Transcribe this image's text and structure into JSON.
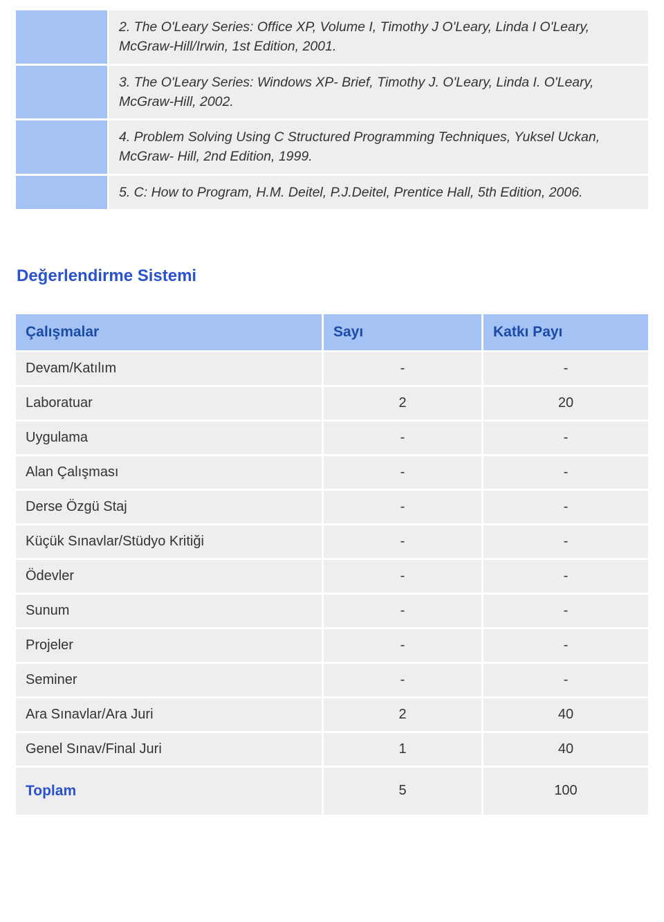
{
  "colors": {
    "header_bg": "#a4c2f4",
    "header_text": "#1b4aa8",
    "cell_bg": "#eeeeee",
    "cell_text": "#333333",
    "section_title": "#2952cc",
    "page_bg": "#ffffff"
  },
  "references": {
    "items": [
      "2. The O'Leary Series: Office XP, Volume I, Timothy J O'Leary, Linda I O'Leary, McGraw-Hill/Irwin, 1st Edition, 2001.",
      "3. The O'Leary Series: Windows XP- Brief, Timothy J. O'Leary, Linda I. O'Leary, McGraw-Hill, 2002.",
      "4. Problem Solving Using C Structured Programming Techniques, Yuksel Uckan, McGraw- Hill, 2nd Edition, 1999.",
      "5. C: How to Program, H.M. Deitel, P.J.Deitel, Prentice Hall, 5th Edition, 2006."
    ]
  },
  "assessment": {
    "section_title": "Değerlendirme Sistemi",
    "headers": {
      "activities": "Çalışmalar",
      "count": "Sayı",
      "contribution": "Katkı Payı"
    },
    "rows": [
      {
        "label": "Devam/Katılım",
        "count": "-",
        "contribution": "-"
      },
      {
        "label": "Laboratuar",
        "count": "2",
        "contribution": "20"
      },
      {
        "label": "Uygulama",
        "count": "-",
        "contribution": "-"
      },
      {
        "label": "Alan Çalışması",
        "count": "-",
        "contribution": "-"
      },
      {
        "label": "Derse Özgü Staj",
        "count": "-",
        "contribution": "-"
      },
      {
        "label": "Küçük Sınavlar/Stüdyo Kritiği",
        "count": "-",
        "contribution": "-"
      },
      {
        "label": "Ödevler",
        "count": "-",
        "contribution": "-"
      },
      {
        "label": "Sunum",
        "count": "-",
        "contribution": "-"
      },
      {
        "label": "Projeler",
        "count": "-",
        "contribution": "-"
      },
      {
        "label": "Seminer",
        "count": "-",
        "contribution": "-"
      },
      {
        "label": "Ara Sınavlar/Ara Juri",
        "count": "2",
        "contribution": "40"
      },
      {
        "label": "Genel Sınav/Final Juri",
        "count": "1",
        "contribution": "40"
      }
    ],
    "total": {
      "label": "Toplam",
      "count": "5",
      "contribution": "100"
    }
  }
}
